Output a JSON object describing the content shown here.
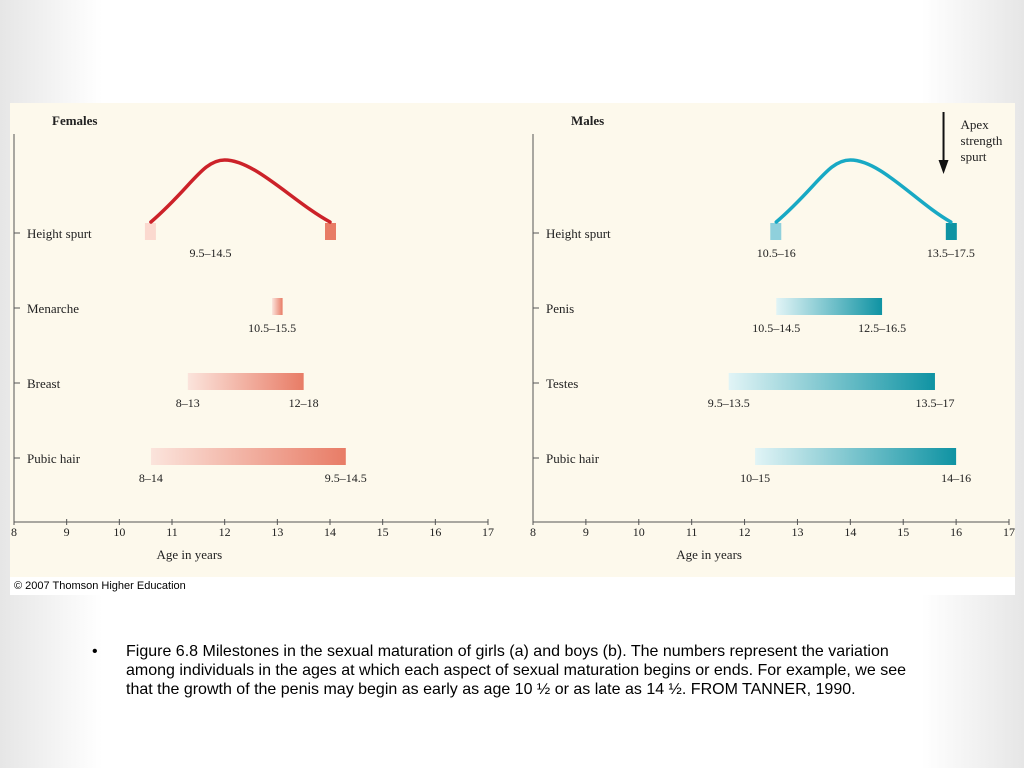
{
  "credit": "© 2007 Thomson Higher Education",
  "caption": "Figure 6.8 Milestones in the sexual maturation of girls (a) and boys (b).  The numbers represent the variation among individuals in the ages at which each aspect of sexual maturation begins or ends.  For example, we see that the growth of the penis may begin as early as age 10 ½ or as late as 14 ½.  FROM TANNER, 1990.",
  "bullet": "•",
  "chart_data": [
    {
      "type": "range-bar",
      "title": "Females",
      "xlabel": "Age in years",
      "xlim": [
        8,
        17
      ],
      "xticks": [
        8,
        9,
        10,
        11,
        12,
        13,
        14,
        15,
        16,
        17
      ],
      "categories": [
        "Height spurt",
        "Menarche",
        "Breast",
        "Pubic hair"
      ],
      "color": "#e87c66",
      "curve_color": "#cc2229",
      "rows": [
        {
          "label": "Height spurt",
          "kind": "spurt",
          "start": 10.6,
          "end": 14.0,
          "peak": 12.0,
          "start_label": "9.5–14.5",
          "end_label": ""
        },
        {
          "label": "Menarche",
          "kind": "bar",
          "start": 12.9,
          "end": 13.1,
          "start_label": "10.5–15.5",
          "end_label": ""
        },
        {
          "label": "Breast",
          "kind": "bar",
          "start": 11.3,
          "end": 13.5,
          "start_label": "8–13",
          "end_label": "12–18"
        },
        {
          "label": "Pubic hair",
          "kind": "bar",
          "start": 10.6,
          "end": 14.3,
          "start_label": "8–14",
          "end_label": "9.5–14.5"
        }
      ]
    },
    {
      "type": "range-bar",
      "title": "Males",
      "xlabel": "Age in years",
      "xlim": [
        8,
        17
      ],
      "xticks": [
        8,
        9,
        10,
        11,
        12,
        13,
        14,
        15,
        16,
        17
      ],
      "categories": [
        "Height spurt",
        "Penis",
        "Testes",
        "Pubic hair"
      ],
      "color": "#0f93a3",
      "curve_color": "#18a9c4",
      "annotation": "Apex strength spurt",
      "annotation_x": 15.8,
      "rows": [
        {
          "label": "Height spurt",
          "kind": "spurt",
          "start": 12.6,
          "end": 15.9,
          "peak": 14.0,
          "start_label": "10.5–16",
          "end_label": "13.5–17.5"
        },
        {
          "label": "Penis",
          "kind": "bar",
          "start": 12.6,
          "end": 14.6,
          "start_label": "10.5–14.5",
          "end_label": "12.5–16.5"
        },
        {
          "label": "Testes",
          "kind": "bar",
          "start": 11.7,
          "end": 15.6,
          "start_label": "9.5–13.5",
          "end_label": "13.5–17"
        },
        {
          "label": "Pubic hair",
          "kind": "bar",
          "start": 12.2,
          "end": 16.0,
          "start_label": "10–15",
          "end_label": "14–16"
        }
      ]
    }
  ]
}
